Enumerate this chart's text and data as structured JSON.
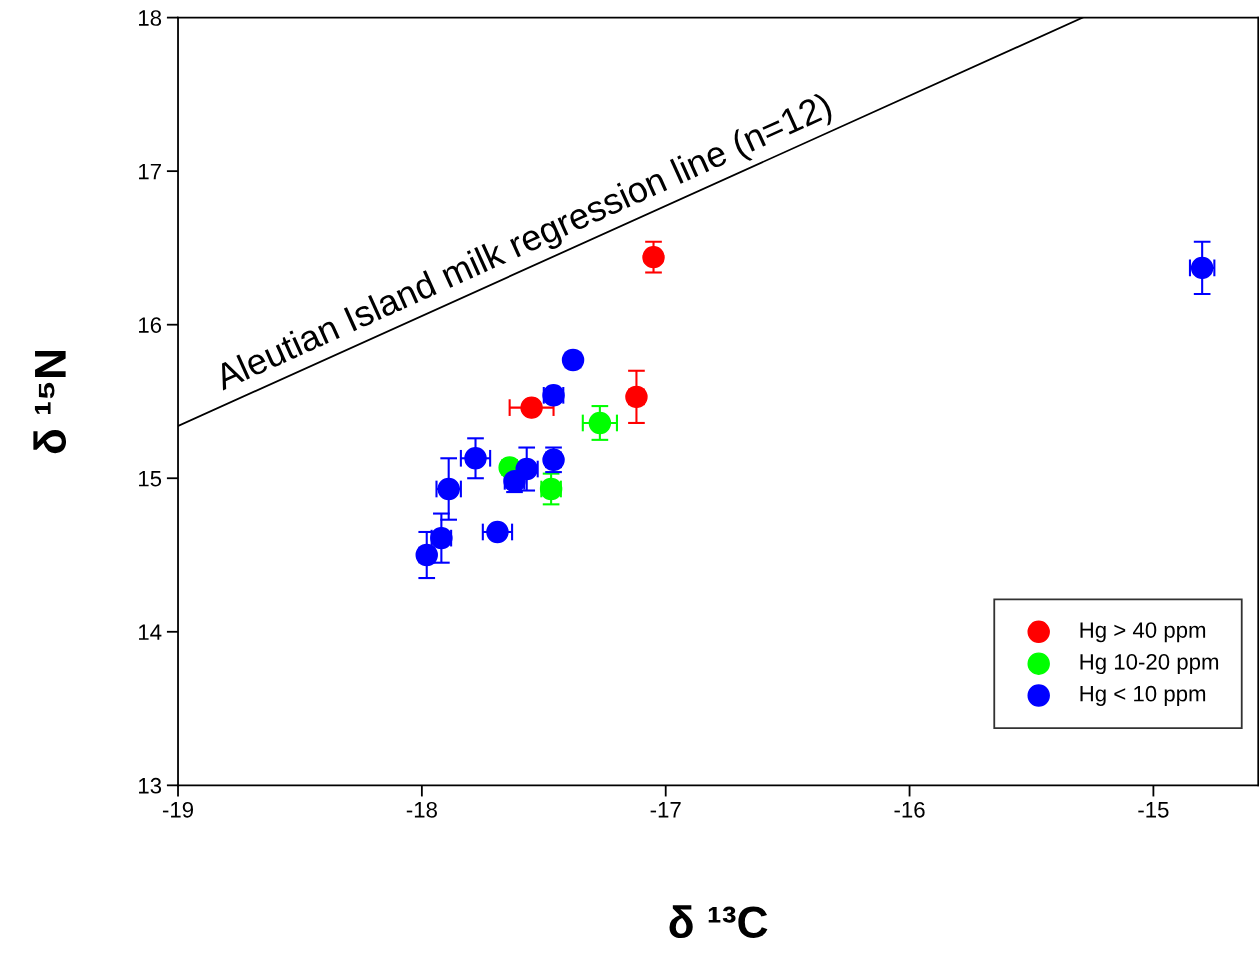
{
  "chart_data": {
    "type": "scatter",
    "xlabel": "δ ¹³C",
    "ylabel": "δ ¹⁵N",
    "xlim": [
      -19,
      -14.57
    ],
    "ylim": [
      13,
      18
    ],
    "xticks": [
      -19,
      -18,
      -17,
      -16,
      -15
    ],
    "yticks": [
      13,
      14,
      15,
      16,
      17,
      18
    ],
    "grid": false,
    "legend": "bottom right",
    "marker": "circle",
    "annotations": [
      "Aleutian Island milk regression line (n=12)"
    ],
    "series": [
      {
        "name": "Hg > 40 ppm",
        "color": "#ff0000",
        "x": [
          -17.05,
          -17.12,
          -17.55
        ],
        "values": [
          16.44,
          15.53,
          15.46
        ],
        "xerrors": [
          0.02,
          0.03,
          0.09
        ],
        "errors": [
          0.1,
          0.17,
          0.03
        ]
      },
      {
        "name": "Hg 10-20 ppm",
        "color": "#00ff00",
        "x": [
          -17.27,
          -17.47,
          -17.64
        ],
        "values": [
          15.36,
          14.93,
          15.07
        ],
        "xerrors": [
          0.07,
          0.04,
          0.03
        ],
        "errors": [
          0.11,
          0.1,
          0.03
        ]
      },
      {
        "name": "Hg < 10 ppm",
        "color": "#0000ff",
        "x": [
          -14.8,
          -17.38,
          -17.46,
          -17.46,
          -17.57,
          -17.62,
          -17.78,
          -17.89,
          -17.92,
          -17.98,
          -17.69
        ],
        "values": [
          16.37,
          15.77,
          15.54,
          15.12,
          15.06,
          14.98,
          15.13,
          14.93,
          14.61,
          14.5,
          14.65
        ],
        "xerrors": [
          0.05,
          0.03,
          0.04,
          0.03,
          0.045,
          0.04,
          0.06,
          0.05,
          0.04,
          0.03,
          0.06
        ],
        "errors": [
          0.17,
          0.03,
          0.04,
          0.08,
          0.14,
          0.07,
          0.13,
          0.2,
          0.16,
          0.15,
          0.02
        ]
      },
      {
        "type": "line",
        "marker": "none",
        "color": "#000000",
        "x": [
          -19,
          -15.29
        ],
        "values": [
          15.34,
          18
        ]
      }
    ]
  }
}
